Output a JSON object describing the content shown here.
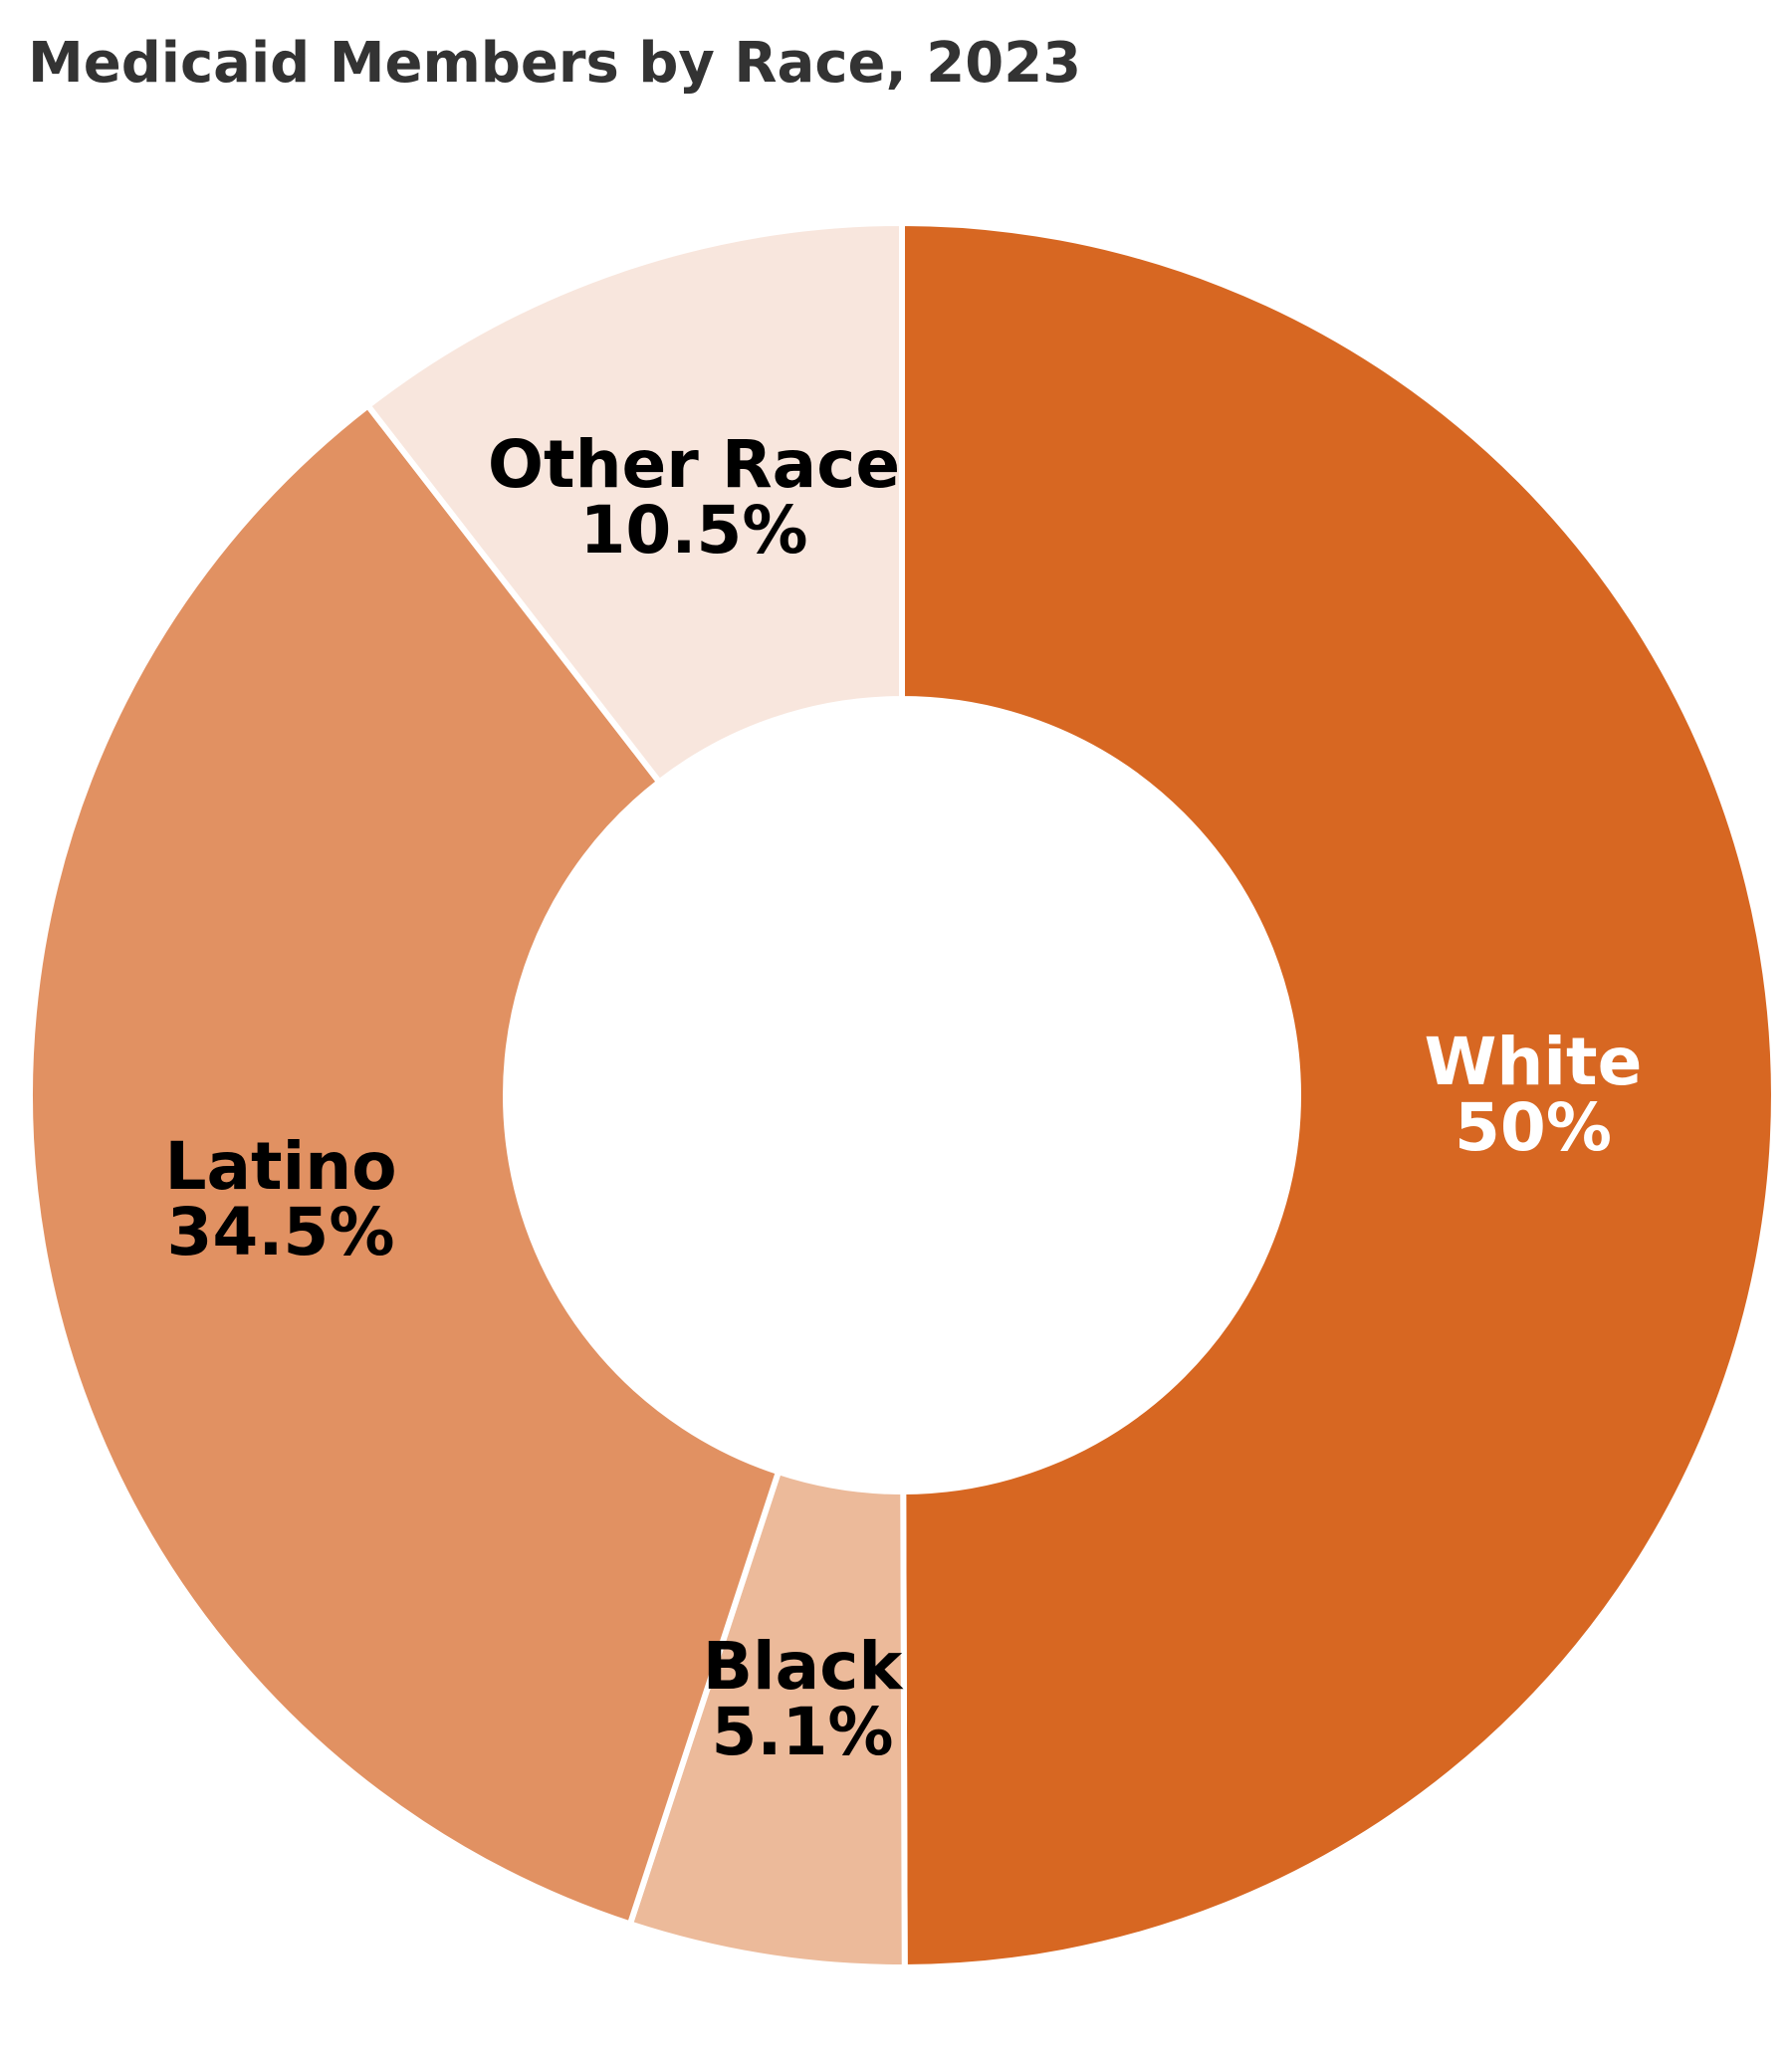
{
  "title": "Medicaid Members by Race, 2023",
  "chart_data": {
    "type": "pie",
    "variant": "donut",
    "title": "Medicaid Members by Race, 2023",
    "unit": "%",
    "start_angle_deg": 0,
    "direction": "clockwise",
    "slices": [
      {
        "key": "white",
        "label": "White",
        "value": 50,
        "value_label": "50%",
        "color": "#D76722",
        "text_color": "#FFFFFF"
      },
      {
        "key": "black",
        "label": "Black",
        "value": 5.1,
        "value_label": "5.1%",
        "color": "#ECBA9A",
        "text_color": "#000000"
      },
      {
        "key": "latino",
        "label": "Latino",
        "value": 34.5,
        "value_label": "34.5%",
        "color": "#E19162",
        "text_color": "#000000"
      },
      {
        "key": "other",
        "label": "Other Race",
        "value": 10.5,
        "value_label": "10.5%",
        "color": "#F8E6DD",
        "text_color": "#000000"
      }
    ]
  }
}
